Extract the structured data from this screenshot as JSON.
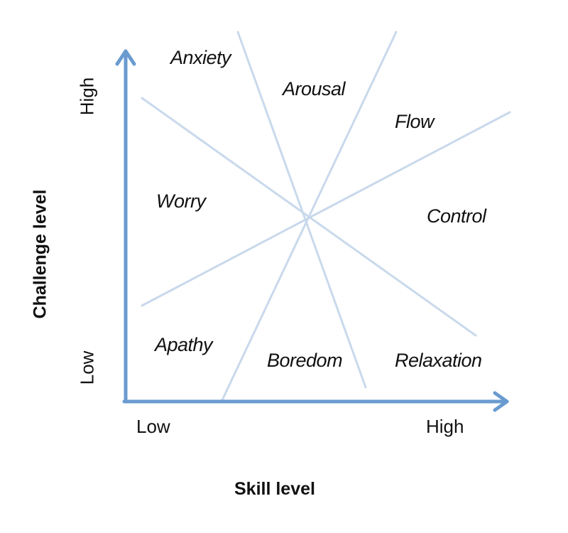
{
  "colors": {
    "axis": "#6a9bd0",
    "divider": "#c9d9ec",
    "text": "#111111"
  },
  "axes": {
    "x_title": "Skill level",
    "y_title": "Challenge level",
    "x_ticks": [
      "Low",
      "High"
    ],
    "y_ticks": [
      "Low",
      "High"
    ]
  },
  "zones": {
    "anxiety": "Anxiety",
    "arousal": "Arousal",
    "flow": "Flow",
    "worry": "Worry",
    "control": "Control",
    "apathy": "Apathy",
    "boredom": "Boredom",
    "relaxation": "Relaxation"
  }
}
